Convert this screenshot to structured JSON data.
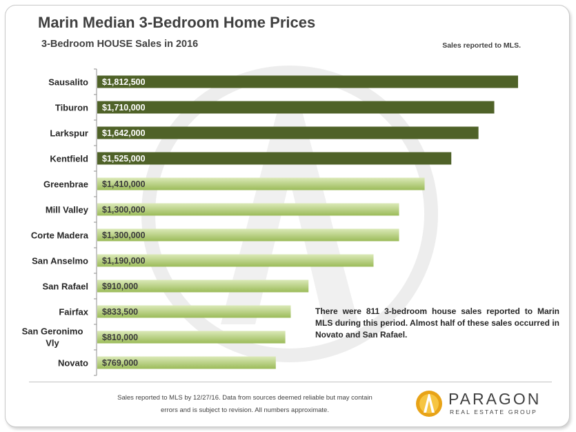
{
  "title": "Marin Median 3-Bedroom Home Prices",
  "subtitle": "3-Bedroom HOUSE Sales in 2016",
  "note_top_right": "Sales reported to MLS.",
  "callout": "There were 811 3-bedroom house sales reported to Marin MLS during this period. Almost half of these sales occurred in Novato and San Rafael.",
  "footer": {
    "line1": "Sales reported to MLS by 12/27/16. Data from sources deemed reliable but may contain",
    "line2": "errors and is subject to revision. All numbers approximate."
  },
  "logo": {
    "name": "PARAGON",
    "tagline": "REAL ESTATE GROUP"
  },
  "colors": {
    "dark_bar": "#4f6228",
    "light_bar_top": "#c7dc9a",
    "light_bar_bottom": "#9bbb59",
    "text": "#404040"
  },
  "chart_data": {
    "type": "bar",
    "orientation": "horizontal",
    "categories": [
      "Sausalito",
      "Tiburon",
      "Larkspur",
      "Kentfield",
      "Greenbrae",
      "Mill Valley",
      "Corte Madera",
      "San Anselmo",
      "San Rafael",
      "Fairfax",
      "San Geronimo Vly",
      "Novato"
    ],
    "values": [
      1812500,
      1710000,
      1642000,
      1525000,
      1410000,
      1300000,
      1300000,
      1190000,
      910000,
      833500,
      810000,
      769000
    ],
    "value_labels": [
      "$1,812,500",
      "$1,710,000",
      "$1,642,000",
      "$1,525,000",
      "$1,410,000",
      "$1,300,000",
      "$1,300,000",
      "$1,190,000",
      "$910,000",
      "$833,500",
      "$810,000",
      "$769,000"
    ],
    "highlight_top_n": 4,
    "xlim": [
      0,
      2000000
    ],
    "grid": false,
    "legend": "none"
  }
}
